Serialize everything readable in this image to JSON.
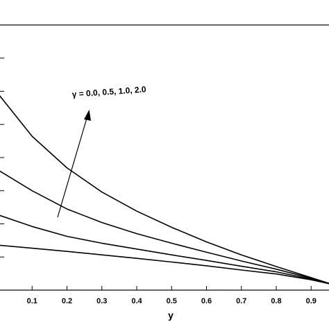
{
  "chart_data": {
    "type": "line",
    "xlabel": "y",
    "ylabel": "",
    "title": "",
    "xlim": [
      0,
      0.96
    ],
    "ylim": [
      0,
      1
    ],
    "x_ticks": [
      "0.1",
      "0.2",
      "0.3",
      "0.4",
      "0.5",
      "0.6",
      "0.7",
      "0.8",
      "0.9"
    ],
    "annotation": "γ = 0.0, 0.5, 1.0, 2.0",
    "series": [
      {
        "x": [
          0,
          0.1,
          0.2,
          0.3,
          0.4,
          0.5,
          0.6,
          0.7,
          0.8,
          0.9,
          0.96
        ],
        "y": [
          0.17,
          0.158,
          0.146,
          0.133,
          0.12,
          0.106,
          0.092,
          0.076,
          0.061,
          0.039,
          0.022
        ]
      },
      {
        "x": [
          0,
          0.1,
          0.2,
          0.3,
          0.4,
          0.5,
          0.6,
          0.7,
          0.8,
          0.9,
          0.96
        ],
        "y": [
          0.285,
          0.24,
          0.203,
          0.177,
          0.155,
          0.133,
          0.112,
          0.09,
          0.069,
          0.042,
          0.022
        ]
      },
      {
        "x": [
          0,
          0.1,
          0.2,
          0.3,
          0.4,
          0.5,
          0.6,
          0.7,
          0.8,
          0.9,
          0.96
        ],
        "y": [
          0.455,
          0.375,
          0.306,
          0.255,
          0.213,
          0.177,
          0.143,
          0.11,
          0.079,
          0.045,
          0.022
        ]
      },
      {
        "x": [
          0,
          0.1,
          0.2,
          0.3,
          0.4,
          0.5,
          0.6,
          0.7,
          0.8,
          0.9,
          0.96
        ],
        "y": [
          0.745,
          0.58,
          0.461,
          0.37,
          0.298,
          0.237,
          0.182,
          0.133,
          0.089,
          0.047,
          0.022
        ]
      }
    ]
  }
}
